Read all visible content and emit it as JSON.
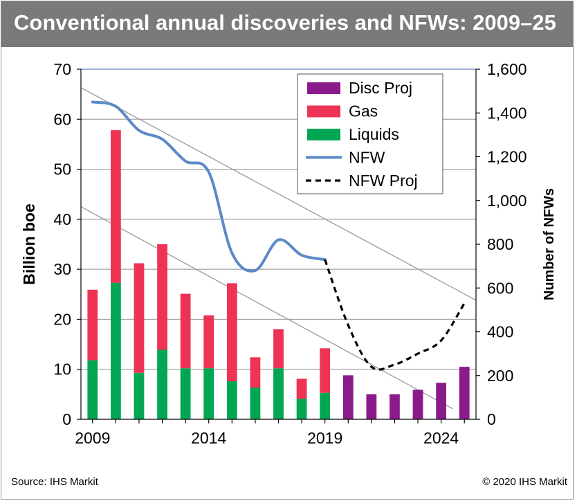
{
  "title": "Conventional annual discoveries and NFWs: 2009–25",
  "source": "Source: IHS Markit",
  "copyright": "© 2020 IHS Markit",
  "chart_data": {
    "type": "bar",
    "title": "Conventional annual discoveries and NFWs: 2009–25",
    "ylabel": "Billion boe",
    "y2label": "Number of NFWs",
    "ylim": [
      0,
      70
    ],
    "y2lim": [
      0,
      1600
    ],
    "yticks": [
      "0",
      "10",
      "20",
      "30",
      "40",
      "50",
      "60",
      "70"
    ],
    "y2ticks": [
      "0",
      "200",
      "400",
      "600",
      "800",
      "1,000",
      "1,200",
      "1,400",
      "1,600"
    ],
    "xticks": [
      "2009",
      "2014",
      "2019",
      "2024"
    ],
    "xtick_values": [
      2009,
      2014,
      2019,
      2024
    ],
    "xlim": [
      2008.5,
      2025.5
    ],
    "legend_position": "top-right",
    "grid": true,
    "colors": {
      "disc_proj": "#8b1a8b",
      "gas": "#ee3355",
      "liquids": "#00a651",
      "nfw": "#5b8ac6",
      "nfw_proj": "#000000",
      "trend": "#9a9a9a"
    },
    "legend": [
      {
        "label": "Disc Proj",
        "kind": "bar",
        "color": "#8b1a8b"
      },
      {
        "label": "Gas",
        "kind": "bar",
        "color": "#ee3355"
      },
      {
        "label": "Liquids",
        "kind": "bar",
        "color": "#00a651"
      },
      {
        "label": "NFW",
        "kind": "line",
        "color": "#5b8ac6"
      },
      {
        "label": "NFW Proj",
        "kind": "dash",
        "color": "#000000"
      }
    ],
    "series": [
      {
        "name": "Liquids",
        "years": [
          2009,
          2010,
          2011,
          2012,
          2013,
          2014,
          2015,
          2016,
          2017,
          2018,
          2019
        ],
        "values": [
          11.8,
          27.3,
          9.3,
          13.9,
          10.2,
          10.2,
          7.6,
          6.3,
          10.2,
          4.1,
          5.3
        ]
      },
      {
        "name": "Gas",
        "years": [
          2009,
          2010,
          2011,
          2012,
          2013,
          2014,
          2015,
          2016,
          2017,
          2018,
          2019
        ],
        "values": [
          14.1,
          30.5,
          21.9,
          21.1,
          14.9,
          10.6,
          19.6,
          6.1,
          7.8,
          4.0,
          8.9
        ]
      },
      {
        "name": "Disc Proj",
        "years": [
          2020,
          2021,
          2022,
          2023,
          2024,
          2025
        ],
        "values": [
          8.8,
          5.0,
          5.0,
          5.9,
          7.3,
          10.5
        ]
      },
      {
        "name": "NFW",
        "years": [
          2009,
          2010,
          2011,
          2012,
          2013,
          2014,
          2015,
          2016,
          2017,
          2018,
          2019
        ],
        "values": [
          1450,
          1430,
          1320,
          1280,
          1180,
          1130,
          760,
          680,
          820,
          750,
          730
        ]
      },
      {
        "name": "NFW Proj",
        "years": [
          2019,
          2020,
          2021,
          2022,
          2023,
          2024,
          2025
        ],
        "values": [
          730,
          430,
          240,
          250,
          300,
          360,
          530
        ]
      }
    ],
    "trend_lines": [
      {
        "from": [
          2008.5,
          66.3
        ],
        "to": [
          2025.5,
          23.8
        ]
      },
      {
        "from": [
          2008.5,
          42.5
        ],
        "to": [
          2024.5,
          2.1
        ]
      }
    ]
  }
}
